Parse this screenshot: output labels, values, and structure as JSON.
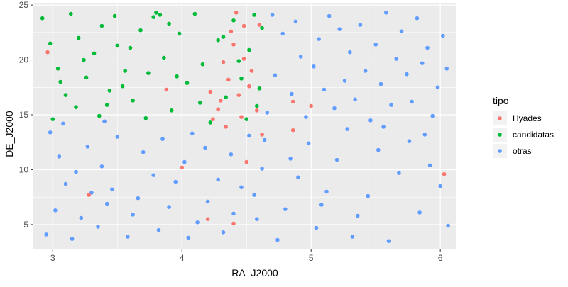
{
  "chart_data": {
    "type": "scatter",
    "xlabel": "RA_J2000",
    "ylabel": "DE_J2000",
    "xlim": [
      2.85,
      6.12
    ],
    "ylim": [
      2.8,
      25.2
    ],
    "x_ticks": [
      3,
      4,
      5,
      6
    ],
    "y_ticks": [
      5,
      10,
      15,
      20,
      25
    ],
    "x_tick_labels": [
      "3",
      "4",
      "5",
      "6"
    ],
    "y_tick_labels": [
      "5",
      "10",
      "15",
      "20",
      "25"
    ],
    "grid": true,
    "legend": {
      "title": "tipo",
      "position": "right",
      "entries": [
        "Hyades",
        "candidatas",
        "otras"
      ]
    },
    "colors": {
      "Hyades": "#F8766D",
      "candidatas": "#00BA38",
      "otras": "#619CFF",
      "panel": "#EBEBEB",
      "grid": "#FFFFFF"
    },
    "draw_order": [
      "otras",
      "candidatas",
      "Hyades"
    ],
    "series": [
      {
        "name": "otras",
        "points": [
          [
            2.95,
            4.1
          ],
          [
            3.02,
            6.3
          ],
          [
            3.1,
            8.7
          ],
          [
            3.05,
            11.2
          ],
          [
            2.98,
            13.4
          ],
          [
            3.15,
            3.7
          ],
          [
            3.22,
            5.6
          ],
          [
            3.3,
            7.9
          ],
          [
            3.18,
            9.8
          ],
          [
            3.27,
            12.1
          ],
          [
            3.35,
            4.8
          ],
          [
            3.42,
            6.9
          ],
          [
            3.38,
            10.3
          ],
          [
            3.5,
            13.0
          ],
          [
            3.46,
            8.2
          ],
          [
            3.58,
            3.9
          ],
          [
            3.62,
            5.9
          ],
          [
            3.7,
            11.6
          ],
          [
            3.66,
            7.4
          ],
          [
            3.78,
            9.5
          ],
          [
            3.85,
            12.8
          ],
          [
            3.82,
            4.5
          ],
          [
            3.9,
            6.6
          ],
          [
            3.95,
            8.9
          ],
          [
            4.02,
            10.7
          ],
          [
            4.08,
            13.3
          ],
          [
            4.05,
            3.8
          ],
          [
            4.12,
            5.2
          ],
          [
            4.2,
            7.1
          ],
          [
            4.18,
            12.0
          ],
          [
            4.28,
            9.1
          ],
          [
            4.32,
            4.3
          ],
          [
            4.4,
            6.0
          ],
          [
            4.38,
            11.4
          ],
          [
            4.46,
            8.4
          ],
          [
            4.52,
            13.1
          ],
          [
            4.58,
            5.5
          ],
          [
            4.62,
            10.1
          ],
          [
            4.56,
            7.7
          ],
          [
            4.66,
            15.2
          ],
          [
            4.72,
            18.6
          ],
          [
            4.78,
            22.4
          ],
          [
            4.7,
            24.1
          ],
          [
            4.85,
            16.9
          ],
          [
            4.92,
            20.3
          ],
          [
            4.88,
            23.5
          ],
          [
            4.96,
            14.8
          ],
          [
            5.02,
            19.4
          ],
          [
            5.06,
            21.9
          ],
          [
            5.1,
            17.3
          ],
          [
            5.14,
            24.0
          ],
          [
            5.18,
            15.6
          ],
          [
            5.22,
            22.8
          ],
          [
            5.26,
            18.1
          ],
          [
            5.3,
            20.7
          ],
          [
            5.34,
            16.4
          ],
          [
            5.38,
            23.2
          ],
          [
            5.42,
            19.0
          ],
          [
            5.46,
            14.5
          ],
          [
            5.5,
            21.4
          ],
          [
            5.54,
            17.8
          ],
          [
            5.58,
            24.3
          ],
          [
            5.62,
            15.9
          ],
          [
            5.66,
            20.1
          ],
          [
            5.7,
            22.6
          ],
          [
            5.74,
            18.7
          ],
          [
            5.78,
            16.2
          ],
          [
            5.82,
            23.8
          ],
          [
            5.86,
            19.7
          ],
          [
            5.9,
            21.1
          ],
          [
            5.94,
            14.9
          ],
          [
            5.98,
            17.5
          ],
          [
            6.02,
            22.2
          ],
          [
            6.05,
            19.2
          ],
          [
            4.74,
            3.6
          ],
          [
            4.8,
            6.4
          ],
          [
            4.9,
            9.3
          ],
          [
            4.98,
            12.4
          ],
          [
            5.04,
            4.7
          ],
          [
            5.12,
            8.0
          ],
          [
            5.2,
            10.9
          ],
          [
            5.28,
            13.7
          ],
          [
            5.36,
            5.8
          ],
          [
            5.44,
            7.6
          ],
          [
            5.52,
            11.8
          ],
          [
            5.6,
            3.5
          ],
          [
            5.68,
            9.7
          ],
          [
            5.76,
            12.6
          ],
          [
            5.84,
            6.1
          ],
          [
            5.92,
            10.4
          ],
          [
            6.0,
            8.5
          ],
          [
            6.06,
            4.9
          ],
          [
            5.08,
            6.8
          ],
          [
            5.32,
            3.9
          ],
          [
            5.56,
            13.9
          ],
          [
            5.88,
            13.2
          ],
          [
            4.64,
            12.7
          ],
          [
            4.84,
            11.0
          ],
          [
            3.08,
            14.2
          ],
          [
            3.4,
            14.4
          ]
        ]
      },
      {
        "name": "candidatas",
        "points": [
          [
            2.92,
            23.8
          ],
          [
            2.98,
            21.5
          ],
          [
            3.04,
            19.2
          ],
          [
            3.1,
            16.8
          ],
          [
            3.0,
            14.6
          ],
          [
            3.14,
            24.2
          ],
          [
            3.2,
            22.0
          ],
          [
            3.26,
            18.4
          ],
          [
            3.18,
            15.7
          ],
          [
            3.32,
            20.6
          ],
          [
            3.38,
            23.1
          ],
          [
            3.44,
            17.2
          ],
          [
            3.36,
            14.9
          ],
          [
            3.5,
            21.3
          ],
          [
            3.56,
            19.0
          ],
          [
            3.48,
            24.0
          ],
          [
            3.62,
            16.3
          ],
          [
            3.68,
            22.7
          ],
          [
            3.74,
            18.8
          ],
          [
            3.8,
            24.3
          ],
          [
            3.78,
            23.9
          ],
          [
            3.83,
            24.1
          ],
          [
            3.86,
            20.2
          ],
          [
            3.92,
            15.4
          ],
          [
            3.98,
            22.4
          ],
          [
            4.04,
            17.9
          ],
          [
            4.1,
            24.2
          ],
          [
            4.16,
            19.6
          ],
          [
            4.22,
            14.3
          ],
          [
            4.28,
            21.8
          ],
          [
            4.34,
            16.6
          ],
          [
            4.4,
            23.6
          ],
          [
            4.46,
            18.3
          ],
          [
            4.52,
            20.9
          ],
          [
            4.58,
            15.8
          ],
          [
            4.62,
            22.9
          ],
          [
            4.6,
            17.4
          ],
          [
            4.56,
            24.1
          ],
          [
            4.5,
            14.6
          ],
          [
            4.44,
            19.9
          ],
          [
            3.06,
            18.0
          ],
          [
            3.24,
            20.0
          ],
          [
            3.42,
            15.9
          ],
          [
            3.6,
            21.1
          ],
          [
            3.96,
            18.5
          ],
          [
            4.14,
            16.1
          ],
          [
            4.32,
            22.1
          ],
          [
            3.72,
            14.7
          ],
          [
            3.54,
            17.6
          ],
          [
            3.9,
            23.3
          ]
        ]
      },
      {
        "name": "Hyades",
        "points": [
          [
            2.96,
            20.7
          ],
          [
            3.28,
            7.7
          ],
          [
            4.4,
            5.1
          ],
          [
            4.2,
            5.5
          ],
          [
            4.0,
            10.2
          ],
          [
            4.5,
            10.7
          ],
          [
            4.62,
            13.2
          ],
          [
            4.86,
            16.2
          ],
          [
            4.86,
            13.6
          ],
          [
            5.0,
            15.8
          ],
          [
            6.03,
            9.6
          ],
          [
            4.22,
            17.1
          ],
          [
            4.28,
            15.5
          ],
          [
            4.32,
            19.8
          ],
          [
            4.36,
            18.2
          ],
          [
            4.4,
            21.4
          ],
          [
            4.44,
            16.8
          ],
          [
            4.48,
            20.1
          ],
          [
            4.52,
            17.6
          ],
          [
            4.46,
            14.8
          ],
          [
            4.38,
            22.6
          ],
          [
            4.58,
            15.4
          ],
          [
            4.3,
            16.3
          ],
          [
            4.54,
            19.0
          ],
          [
            4.42,
            24.3
          ],
          [
            4.34,
            13.9
          ],
          [
            4.48,
            23.1
          ],
          [
            4.24,
            14.6
          ],
          [
            3.88,
            17.3
          ],
          [
            4.6,
            23.2
          ]
        ]
      }
    ]
  }
}
